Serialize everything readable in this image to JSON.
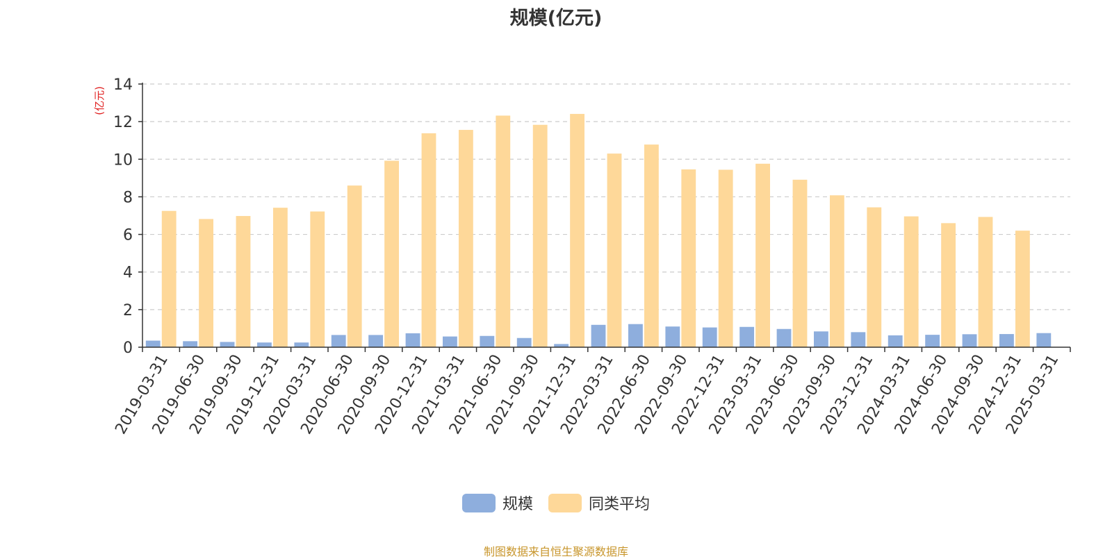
{
  "chart_data": {
    "type": "bar",
    "title": "规模(亿元)",
    "ylabel": "(亿元)",
    "xlabel": "",
    "ylim": [
      0,
      14
    ],
    "yticks": [
      "0",
      "2",
      "4",
      "6",
      "8",
      "10",
      "12",
      "14"
    ],
    "grid": true,
    "legend_position": "bottom",
    "categories": [
      "2019-03-31",
      "2019-06-30",
      "2019-09-30",
      "2019-12-31",
      "2020-03-31",
      "2020-06-30",
      "2020-09-30",
      "2020-12-31",
      "2021-03-31",
      "2021-06-30",
      "2021-09-30",
      "2021-12-31",
      "2022-03-31",
      "2022-06-30",
      "2022-09-30",
      "2022-12-31",
      "2023-03-31",
      "2023-06-30",
      "2023-09-30",
      "2023-12-31",
      "2024-03-31",
      "2024-06-30",
      "2024-09-30",
      "2024-12-31",
      "2025-03-31"
    ],
    "series": [
      {
        "name": "规模",
        "color": "#8eaedd",
        "values": [
          0.35,
          0.32,
          0.28,
          0.25,
          0.25,
          0.65,
          0.65,
          0.74,
          0.57,
          0.6,
          0.49,
          0.17,
          1.19,
          1.23,
          1.1,
          1.05,
          1.08,
          0.97,
          0.84,
          0.8,
          0.63,
          0.66,
          0.69,
          0.7,
          0.75
        ]
      },
      {
        "name": "同类平均",
        "color": "#fed899",
        "values": [
          7.25,
          6.82,
          6.98,
          7.42,
          7.22,
          8.6,
          9.92,
          11.38,
          11.56,
          12.32,
          11.83,
          12.41,
          10.3,
          10.78,
          9.46,
          9.44,
          9.76,
          8.91,
          8.08,
          7.44,
          6.96,
          6.6,
          6.93,
          6.2,
          null
        ]
      }
    ]
  },
  "footer": {
    "source": "制图数据来自恒生聚源数据库"
  }
}
